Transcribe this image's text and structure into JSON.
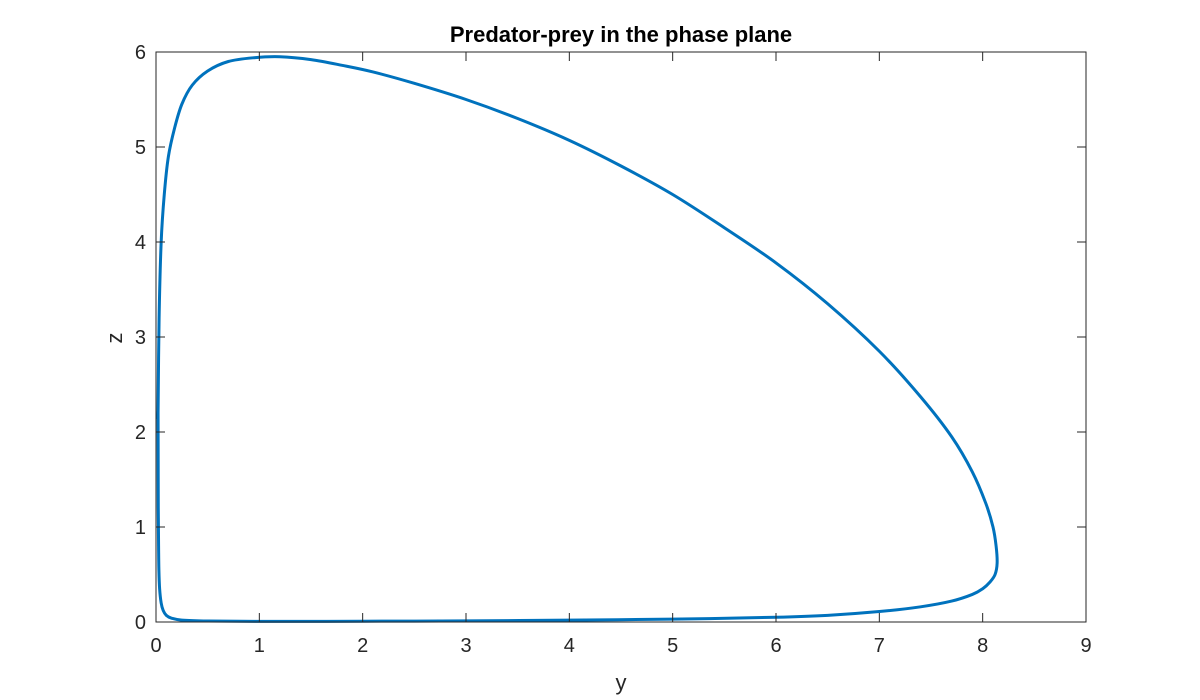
{
  "chart_data": {
    "type": "line",
    "title": "Predator-prey in the phase plane",
    "xlabel": "y",
    "ylabel": "z",
    "xlim": [
      0,
      9
    ],
    "ylim": [
      0,
      6
    ],
    "xticks": [
      0,
      1,
      2,
      3,
      4,
      5,
      6,
      7,
      8,
      9
    ],
    "yticks": [
      0,
      1,
      2,
      3,
      4,
      5,
      6
    ],
    "xtick_labels": [
      "0",
      "1",
      "2",
      "3",
      "4",
      "5",
      "6",
      "7",
      "8",
      "9"
    ],
    "ytick_labels": [
      "0",
      "1",
      "2",
      "3",
      "4",
      "5",
      "6"
    ],
    "grid": false,
    "legend": "none",
    "line_color": "#0072BD",
    "series": [
      {
        "closed": true,
        "x": [
          0.02,
          0.03,
          0.05,
          0.08,
          0.12,
          0.18,
          0.25,
          0.35,
          0.5,
          0.7,
          0.95,
          1.2,
          1.5,
          1.8,
          2.1,
          2.5,
          3.0,
          3.5,
          4.0,
          4.5,
          5.0,
          5.5,
          6.0,
          6.5,
          7.0,
          7.4,
          7.7,
          7.9,
          8.03,
          8.1,
          8.13,
          8.14,
          8.12,
          8.07,
          8.0,
          7.9,
          7.7,
          7.4,
          7.0,
          6.5,
          6.0,
          5.0,
          4.0,
          3.0,
          2.0,
          1.0,
          0.5,
          0.25,
          0.15,
          0.1,
          0.07,
          0.05,
          0.035,
          0.028,
          0.025,
          0.022,
          0.021,
          0.02
        ],
        "y": [
          2.2,
          3.2,
          4.0,
          4.5,
          4.9,
          5.2,
          5.45,
          5.65,
          5.8,
          5.9,
          5.94,
          5.95,
          5.92,
          5.86,
          5.79,
          5.67,
          5.5,
          5.3,
          5.07,
          4.8,
          4.5,
          4.15,
          3.78,
          3.35,
          2.85,
          2.37,
          1.95,
          1.58,
          1.25,
          1.0,
          0.8,
          0.62,
          0.5,
          0.42,
          0.35,
          0.29,
          0.22,
          0.16,
          0.11,
          0.07,
          0.05,
          0.03,
          0.02,
          0.012,
          0.008,
          0.006,
          0.01,
          0.02,
          0.04,
          0.07,
          0.12,
          0.2,
          0.35,
          0.55,
          0.8,
          1.2,
          1.7,
          2.2
        ]
      }
    ]
  }
}
